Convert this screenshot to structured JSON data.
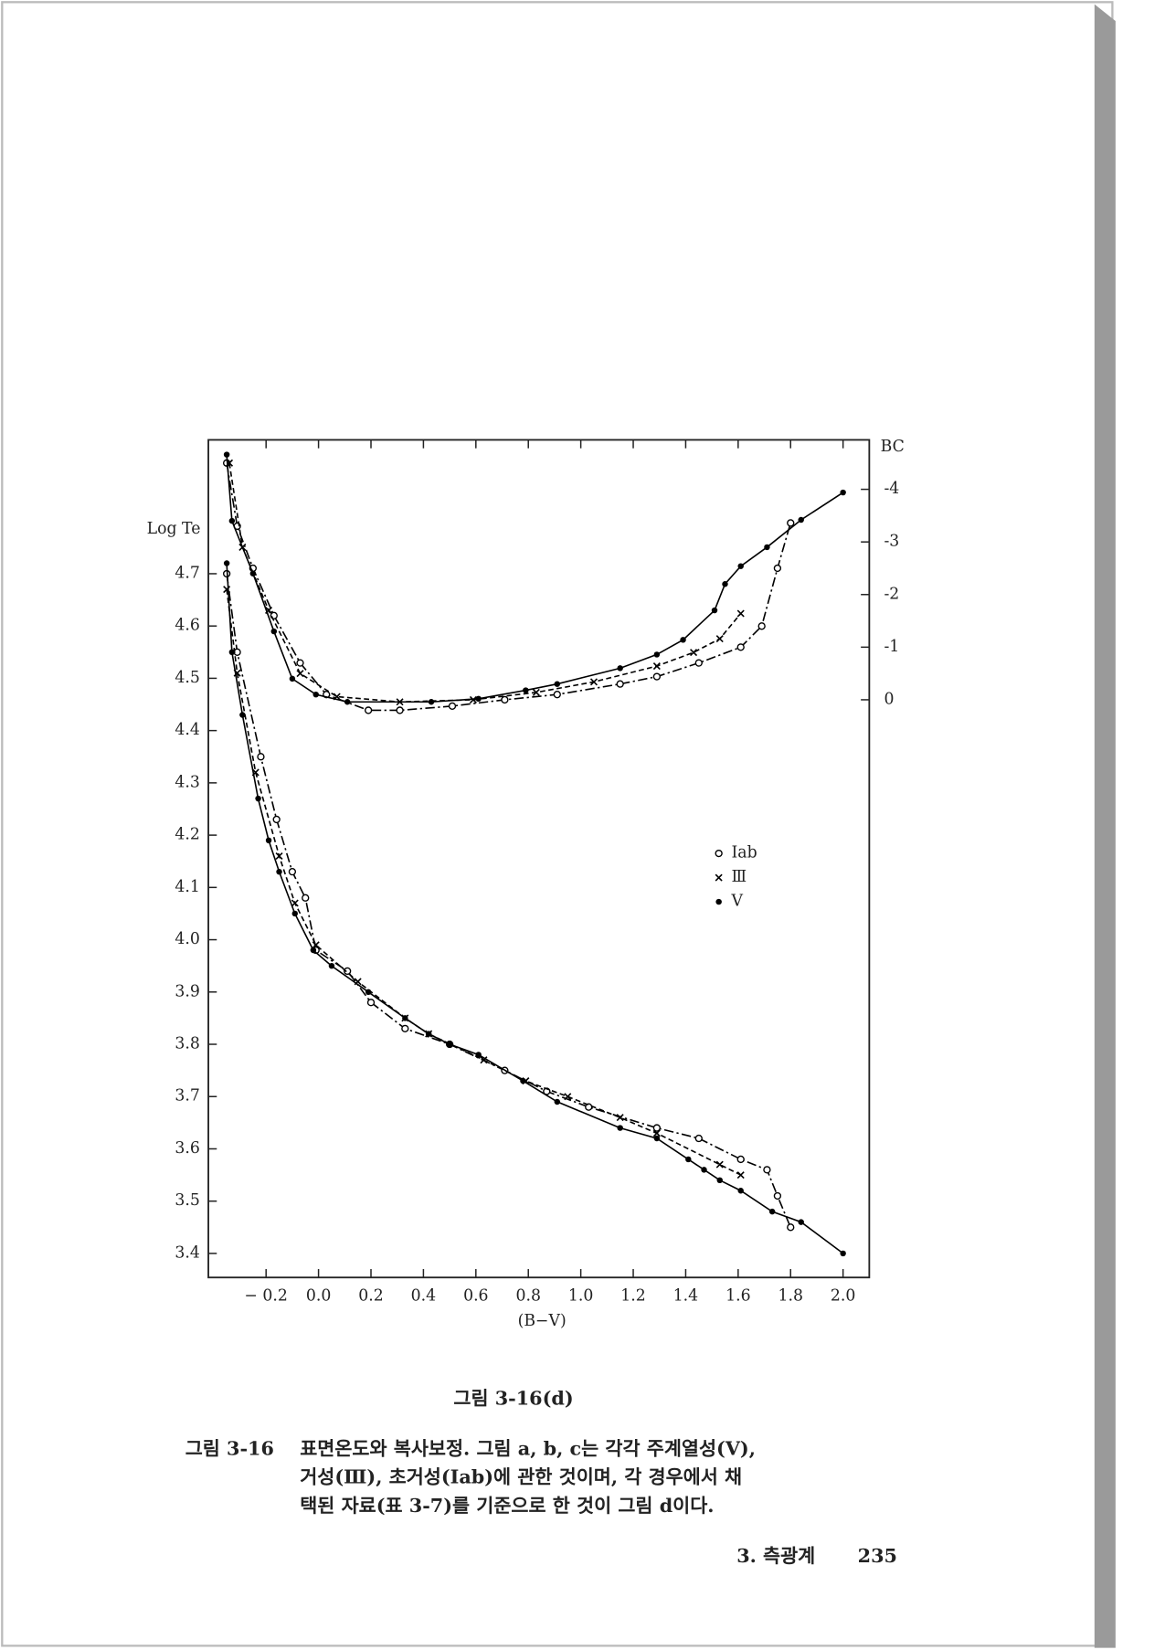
{
  "chart_data": {
    "type": "line",
    "x_label": "(B−V)",
    "y_label": "Log Te",
    "y2_label": "BC",
    "xlim": [
      -0.42,
      2.1
    ],
    "xticks": [
      {
        "value": -0.2,
        "label": "− 0.2"
      },
      {
        "value": 0,
        "label": "0.0"
      },
      0.2,
      0.4,
      0.6,
      0.8,
      {
        "value": 1,
        "label": "1.0"
      },
      1.2,
      1.4,
      1.6,
      1.8,
      {
        "value": 2,
        "label": "2.0"
      }
    ],
    "ylim": [
      3.354,
      4.956
    ],
    "yticks": [
      3.4,
      3.5,
      3.6,
      3.7,
      3.8,
      3.9,
      {
        "value": 4,
        "label": "4.0"
      },
      4.1,
      4.2,
      4.3,
      4.4,
      4.5,
      4.6,
      4.7
    ],
    "y2lim": [
      10.98,
      -4.94
    ],
    "y2ticks": [
      -4,
      -3,
      -2,
      -1,
      0
    ],
    "series": [
      {
        "name": "Iab",
        "color": "#000000",
        "marker": "circle",
        "dash": "9 3 2 3",
        "x": [
          -0.35,
          -0.31,
          -0.22,
          -0.16,
          -0.1,
          -0.05,
          -0.01,
          0.11,
          0.2,
          0.33,
          0.5,
          0.71,
          0.87,
          1.03,
          1.29,
          1.45,
          1.61,
          1.71,
          1.75,
          1.8
        ],
        "values": [
          4.7,
          4.55,
          4.35,
          4.23,
          4.13,
          4.08,
          3.98,
          3.94,
          3.88,
          3.83,
          3.8,
          3.75,
          3.71,
          3.68,
          3.64,
          3.62,
          3.58,
          3.56,
          3.51,
          3.45
        ],
        "bc_x": [
          -0.35,
          -0.31,
          -0.25,
          -0.17,
          -0.07,
          0.03,
          0.19,
          0.31,
          0.51,
          0.71,
          0.91,
          1.15,
          1.29,
          1.45,
          1.61,
          1.69,
          1.75,
          1.8
        ],
        "bc_values": [
          -4.5,
          -3.3,
          -2.5,
          -1.6,
          -0.7,
          -0.1,
          0.2,
          0.2,
          0.12,
          0,
          -0.1,
          -0.3,
          -0.44,
          -0.7,
          -1,
          -1.4,
          -2.5,
          -3.36
        ]
      },
      {
        "name": "Ⅲ",
        "color": "#000000",
        "marker": "cross",
        "dash": "5 3",
        "x": [
          -0.35,
          -0.31,
          -0.24,
          -0.15,
          -0.09,
          -0.01,
          0.15,
          0.33,
          0.42,
          0.63,
          0.79,
          0.95,
          1.15,
          1.29,
          1.53,
          1.61
        ],
        "values": [
          4.67,
          4.51,
          4.32,
          4.16,
          4.07,
          3.99,
          3.92,
          3.85,
          3.82,
          3.77,
          3.73,
          3.7,
          3.66,
          3.63,
          3.57,
          3.55
        ],
        "bc_x": [
          -0.34,
          -0.29,
          -0.19,
          -0.07,
          0.07,
          0.31,
          0.59,
          0.83,
          1.05,
          1.29,
          1.43,
          1.53,
          1.61
        ],
        "bc_values": [
          -4.5,
          -2.9,
          -1.7,
          -0.5,
          -0.06,
          0.04,
          0,
          -0.14,
          -0.34,
          -0.64,
          -0.9,
          -1.16,
          -1.64
        ]
      },
      {
        "name": "V",
        "color": "#000000",
        "marker": "dot",
        "dash": "none",
        "x": [
          -0.35,
          -0.33,
          -0.29,
          -0.23,
          -0.19,
          -0.15,
          -0.09,
          -0.02,
          0.05,
          0.19,
          0.33,
          0.42,
          0.5,
          0.61,
          0.78,
          0.91,
          1.15,
          1.29,
          1.41,
          1.47,
          1.53,
          1.61,
          1.73,
          1.84,
          2.0
        ],
        "values": [
          4.72,
          4.55,
          4.43,
          4.27,
          4.19,
          4.13,
          4.05,
          3.98,
          3.95,
          3.9,
          3.85,
          3.82,
          3.8,
          3.78,
          3.73,
          3.69,
          3.64,
          3.62,
          3.58,
          3.56,
          3.54,
          3.52,
          3.48,
          3.46,
          3.4
        ],
        "bc_x": [
          -0.35,
          -0.33,
          -0.25,
          -0.17,
          -0.1,
          -0.01,
          0.11,
          0.43,
          0.61,
          0.79,
          0.91,
          1.15,
          1.29,
          1.39,
          1.51,
          1.55,
          1.61,
          1.71,
          1.84,
          2.0
        ],
        "bc_values": [
          -4.66,
          -3.4,
          -2.4,
          -1.3,
          -0.4,
          -0.1,
          0.04,
          0.04,
          -0.02,
          -0.18,
          -0.3,
          -0.6,
          -0.86,
          -1.14,
          -1.7,
          -2.2,
          -2.54,
          -2.9,
          -3.42,
          -3.94
        ]
      }
    ]
  },
  "figure_label": "그림 3-16(d)",
  "caption": {
    "label": "그림 3-16",
    "lines": [
      "표면온도와 복사보정. 그림 a, b, c는 각각 주계열성(V),",
      "거성(Ⅲ), 초거성(Iab)에 관한 것이며, 각 경우에서 채",
      "택된 자료(표 3-7)를 기준으로 한 것이 그림 d이다."
    ]
  },
  "footer": {
    "section": "3. 측광계",
    "page": "235"
  }
}
